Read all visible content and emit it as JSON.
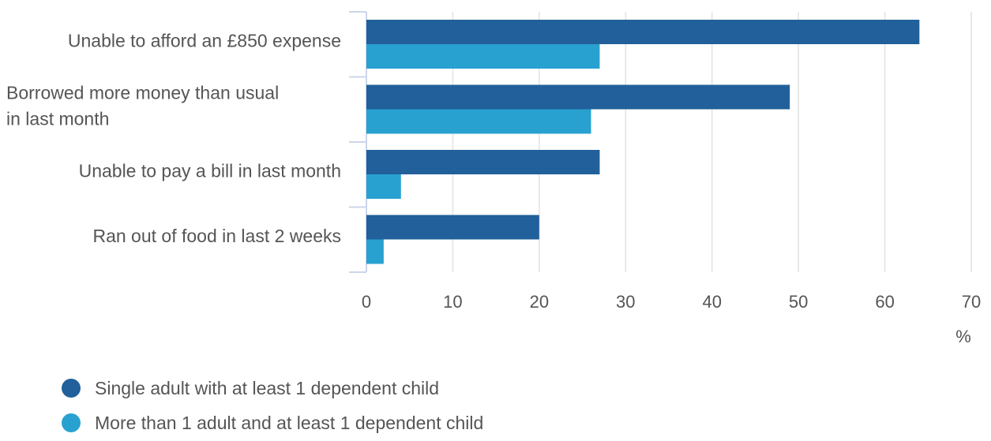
{
  "chart_data": {
    "type": "bar",
    "orientation": "horizontal",
    "categories": [
      [
        "Unable to afford an £850 expense"
      ],
      [
        "Borrowed more money than usual",
        "in last month"
      ],
      [
        "Unable to pay a bill in last month"
      ],
      [
        "Ran out of food in last 2 weeks"
      ]
    ],
    "series": [
      {
        "name": "Single adult with at least 1 dependent child",
        "color": "#21609a",
        "values": [
          64,
          49,
          27,
          20
        ]
      },
      {
        "name": "More than 1 adult and at least 1 dependent child",
        "color": "#28a1d0",
        "values": [
          27,
          26,
          4,
          2
        ]
      }
    ],
    "xlim": [
      0,
      70
    ],
    "xticks": [
      0,
      10,
      20,
      30,
      40,
      50,
      60,
      70
    ],
    "xunit": "%",
    "grid": true,
    "legend_position": "bottom-left"
  }
}
